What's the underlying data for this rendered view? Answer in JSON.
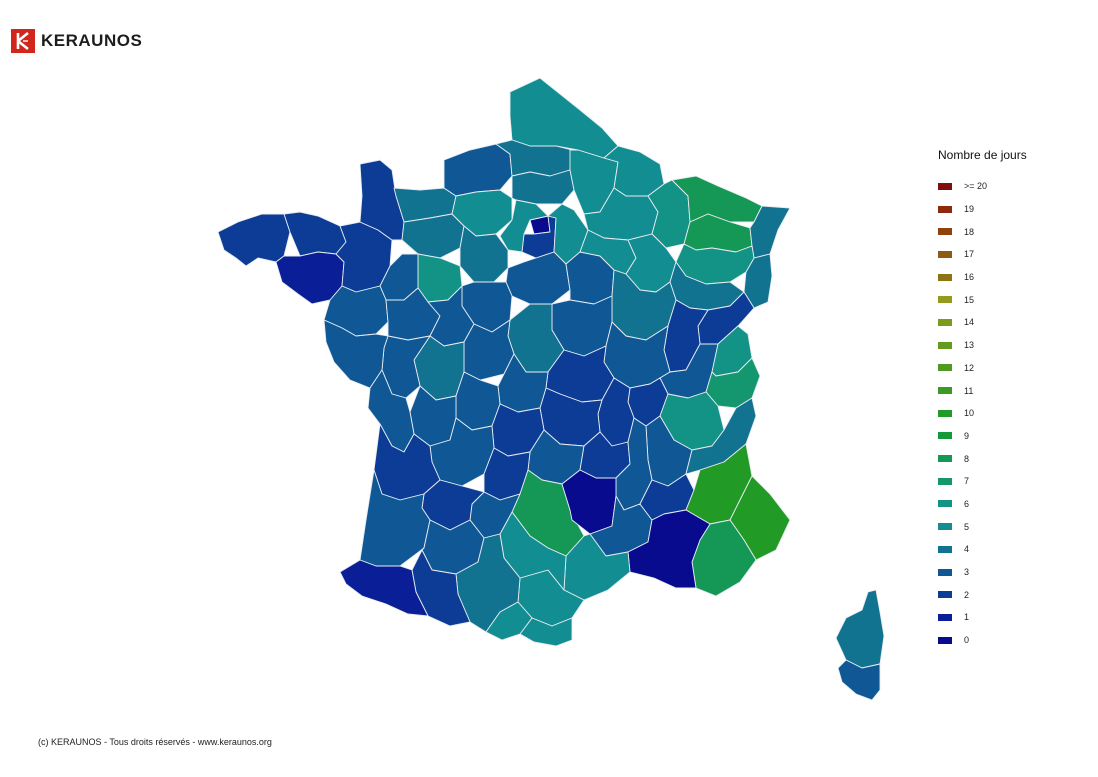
{
  "brand": {
    "name": "KERAUNOS",
    "logo_icon": "keraunos-logo-icon",
    "logo_color": "#d0261c"
  },
  "legend": {
    "title": "Nombre de jours",
    "items": [
      {
        "label": ">= 20",
        "color": "#7f0f0f"
      },
      {
        "label": "19",
        "color": "#8d2a0e"
      },
      {
        "label": "18",
        "color": "#8e430d"
      },
      {
        "label": "17",
        "color": "#8e5c10"
      },
      {
        "label": "16",
        "color": "#8c7414"
      },
      {
        "label": "15",
        "color": "#939a1c"
      },
      {
        "label": "14",
        "color": "#7e9a1c"
      },
      {
        "label": "13",
        "color": "#659a1f"
      },
      {
        "label": "12",
        "color": "#4f9a21"
      },
      {
        "label": "11",
        "color": "#3a9a23"
      },
      {
        "label": "10",
        "color": "#229a26"
      },
      {
        "label": "9",
        "color": "#159a3b"
      },
      {
        "label": "8",
        "color": "#159855"
      },
      {
        "label": "7",
        "color": "#14966e"
      },
      {
        "label": "6",
        "color": "#129385"
      },
      {
        "label": "5",
        "color": "#128e92"
      },
      {
        "label": "4",
        "color": "#127391"
      },
      {
        "label": "3",
        "color": "#0f5895"
      },
      {
        "label": "2",
        "color": "#0c3c96"
      },
      {
        "label": "1",
        "color": "#0a1f97"
      },
      {
        "label": "0",
        "color": "#080b8e"
      }
    ]
  },
  "map": {
    "border_color": "#e8ecf2",
    "regions": [
      {
        "name": "finistere",
        "value": 2
      },
      {
        "name": "cotes-d-armor",
        "value": 2
      },
      {
        "name": "morbihan",
        "value": 1
      },
      {
        "name": "ille-et-vilaine",
        "value": 2
      },
      {
        "name": "manche",
        "value": 2
      },
      {
        "name": "calvados",
        "value": 4
      },
      {
        "name": "orne",
        "value": 4
      },
      {
        "name": "seine-maritime",
        "value": 3
      },
      {
        "name": "eure",
        "value": 5
      },
      {
        "name": "nord-pas-de-calais",
        "value": 5
      },
      {
        "name": "somme",
        "value": 4
      },
      {
        "name": "oise",
        "value": 4
      },
      {
        "name": "aisne",
        "value": 5
      },
      {
        "name": "ardennes",
        "value": 5
      },
      {
        "name": "marne",
        "value": 5
      },
      {
        "name": "meuse",
        "value": 6
      },
      {
        "name": "moselle",
        "value": 8
      },
      {
        "name": "meurthe-et-moselle",
        "value": 8
      },
      {
        "name": "bas-rhin",
        "value": 4
      },
      {
        "name": "haut-rhin",
        "value": 4
      },
      {
        "name": "vosges",
        "value": 6
      },
      {
        "name": "paris",
        "value": 0
      },
      {
        "name": "ile-de-france",
        "value": 2
      },
      {
        "name": "seine-et-marne",
        "value": 5
      },
      {
        "name": "yvelines",
        "value": 5
      },
      {
        "name": "eure-et-loir",
        "value": 4
      },
      {
        "name": "sarthe",
        "value": 6
      },
      {
        "name": "mayenne",
        "value": 3
      },
      {
        "name": "loire-atlantique",
        "value": 3
      },
      {
        "name": "maine-et-loire",
        "value": 3
      },
      {
        "name": "loiret",
        "value": 3
      },
      {
        "name": "loir-et-cher",
        "value": 3
      },
      {
        "name": "indre-et-loire",
        "value": 3
      },
      {
        "name": "yonne",
        "value": 3
      },
      {
        "name": "aube",
        "value": 5
      },
      {
        "name": "haute-marne",
        "value": 5
      },
      {
        "name": "haute-saone",
        "value": 4
      },
      {
        "name": "cote-d-or",
        "value": 4
      },
      {
        "name": "doubs",
        "value": 2
      },
      {
        "name": "jura",
        "value": 2
      },
      {
        "name": "nievre",
        "value": 3
      },
      {
        "name": "cher",
        "value": 4
      },
      {
        "name": "indre",
        "value": 3
      },
      {
        "name": "vienne",
        "value": 4
      },
      {
        "name": "deux-sevres",
        "value": 3
      },
      {
        "name": "vendee",
        "value": 3
      },
      {
        "name": "saone-et-loire",
        "value": 3
      },
      {
        "name": "allier",
        "value": 2
      },
      {
        "name": "ain",
        "value": 3
      },
      {
        "name": "haute-savoie",
        "value": 6
      },
      {
        "name": "savoie",
        "value": 7
      },
      {
        "name": "rhone",
        "value": 2
      },
      {
        "name": "loire",
        "value": 2
      },
      {
        "name": "puy-de-dome",
        "value": 2
      },
      {
        "name": "creuse",
        "value": 3
      },
      {
        "name": "haute-vienne",
        "value": 3
      },
      {
        "name": "charente",
        "value": 3
      },
      {
        "name": "charente-maritime",
        "value": 3
      },
      {
        "name": "isere",
        "value": 6
      },
      {
        "name": "drome",
        "value": 3
      },
      {
        "name": "hautes-alpes",
        "value": 4
      },
      {
        "name": "correze",
        "value": 2
      },
      {
        "name": "cantal",
        "value": 3
      },
      {
        "name": "haute-loire",
        "value": 2
      },
      {
        "name": "ardeche",
        "value": 3
      },
      {
        "name": "dordogne",
        "value": 3
      },
      {
        "name": "gironde",
        "value": 2
      },
      {
        "name": "lot",
        "value": 2
      },
      {
        "name": "aveyron",
        "value": 8
      },
      {
        "name": "lozere",
        "value": 0
      },
      {
        "name": "gard",
        "value": 3
      },
      {
        "name": "vaucluse",
        "value": 2
      },
      {
        "name": "alpes-de-haute-provence",
        "value": 10
      },
      {
        "name": "alpes-maritimes",
        "value": 10
      },
      {
        "name": "var",
        "value": 8
      },
      {
        "name": "bouches-du-rhone",
        "value": 0
      },
      {
        "name": "herault",
        "value": 5
      },
      {
        "name": "aude",
        "value": 5
      },
      {
        "name": "pyrenees-orientales",
        "value": 5
      },
      {
        "name": "tarn",
        "value": 5
      },
      {
        "name": "tarn-et-garonne",
        "value": 3
      },
      {
        "name": "lot-et-garonne",
        "value": 2
      },
      {
        "name": "landes",
        "value": 3
      },
      {
        "name": "gers",
        "value": 3
      },
      {
        "name": "haute-garonne",
        "value": 4
      },
      {
        "name": "hautes-pyrenees",
        "value": 2
      },
      {
        "name": "ariege",
        "value": 5
      },
      {
        "name": "pyrenees-atlantiques",
        "value": 1
      },
      {
        "name": "haute-corse",
        "value": 4
      },
      {
        "name": "corse-du-sud",
        "value": 3
      }
    ]
  },
  "footer": {
    "copyright": "(c) KERAUNOS - Tous droits réservés - www.keraunos.org"
  }
}
